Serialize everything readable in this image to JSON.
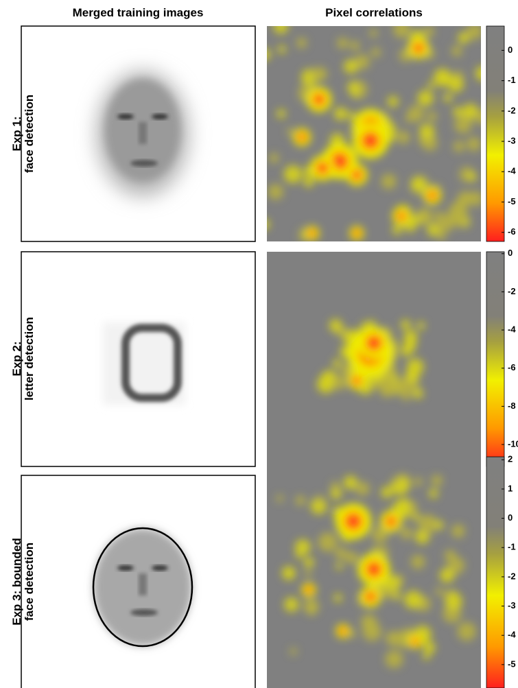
{
  "columns": [
    "Merged training images",
    "Pixel correlations"
  ],
  "rows": [
    {
      "label": [
        "Exp 1:",
        "face detection"
      ],
      "colorbar": {
        "range": [
          0.8,
          -6.3
        ],
        "ticks": [
          0,
          -1,
          -2,
          -3,
          -4,
          -5,
          -6
        ]
      }
    },
    {
      "label": [
        "Exp 2:",
        "letter detection"
      ],
      "colorbar": {
        "range": [
          0.1,
          -11.15
        ],
        "ticks": [
          0,
          -2,
          -4,
          -6,
          -8,
          -10
        ]
      }
    },
    {
      "label": [
        "Exp 3: bounded",
        "face detection"
      ],
      "colorbar": {
        "range": [
          2.1,
          -5.8
        ],
        "ticks": [
          2,
          1,
          0,
          -1,
          -2,
          -3,
          -4,
          -5
        ]
      }
    }
  ]
}
